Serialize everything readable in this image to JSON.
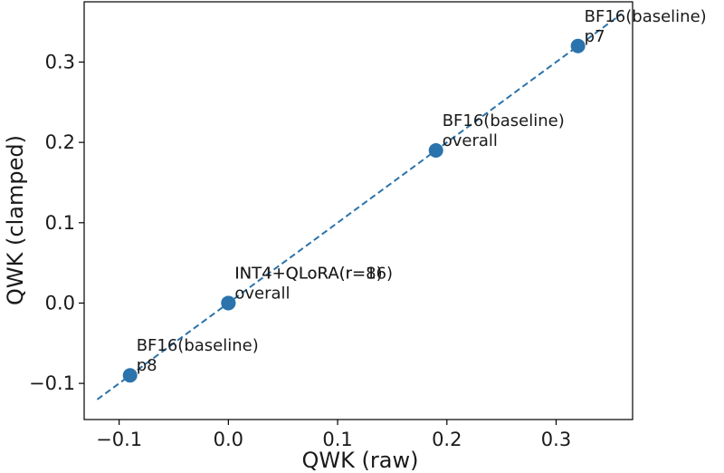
{
  "chart_data": {
    "type": "scatter",
    "title": "",
    "xlabel": "QWK (raw)",
    "ylabel": "QWK (clamped)",
    "xlim": [
      -0.132,
      0.37
    ],
    "ylim": [
      -0.145,
      0.375
    ],
    "xticks": [
      -0.1,
      0.0,
      0.1,
      0.2,
      0.3
    ],
    "xtick_labels": [
      "−0.1",
      "0.0",
      "0.1",
      "0.2",
      "0.3"
    ],
    "yticks": [
      -0.1,
      0.0,
      0.1,
      0.2,
      0.3
    ],
    "ytick_labels": [
      "−0.1",
      "0.0",
      "0.1",
      "0.2",
      "0.3"
    ],
    "grid": false,
    "colors": {
      "points": "#2a73ac",
      "line": "#2a73ac"
    },
    "reference_line": {
      "style": "dashed",
      "x": [
        -0.12,
        0.36
      ],
      "y": [
        -0.12,
        0.36
      ]
    },
    "points": [
      {
        "x": -0.09,
        "y": -0.09,
        "label": [
          "BF16(baseline)",
          "p8"
        ]
      },
      {
        "x": 0.0,
        "y": 0.0,
        "label": [
          "INT4+QLoRA(r=8)",
          "overall"
        ]
      },
      {
        "x": 0.0,
        "y": 0.0,
        "label": [
          "INT4+QLoRA(r=16)",
          ""
        ]
      },
      {
        "x": 0.19,
        "y": 0.19,
        "label": [
          "BF16(baseline)",
          "overall"
        ]
      },
      {
        "x": 0.32,
        "y": 0.32,
        "label": [
          "BF16(baseline)",
          "p7"
        ]
      }
    ]
  }
}
